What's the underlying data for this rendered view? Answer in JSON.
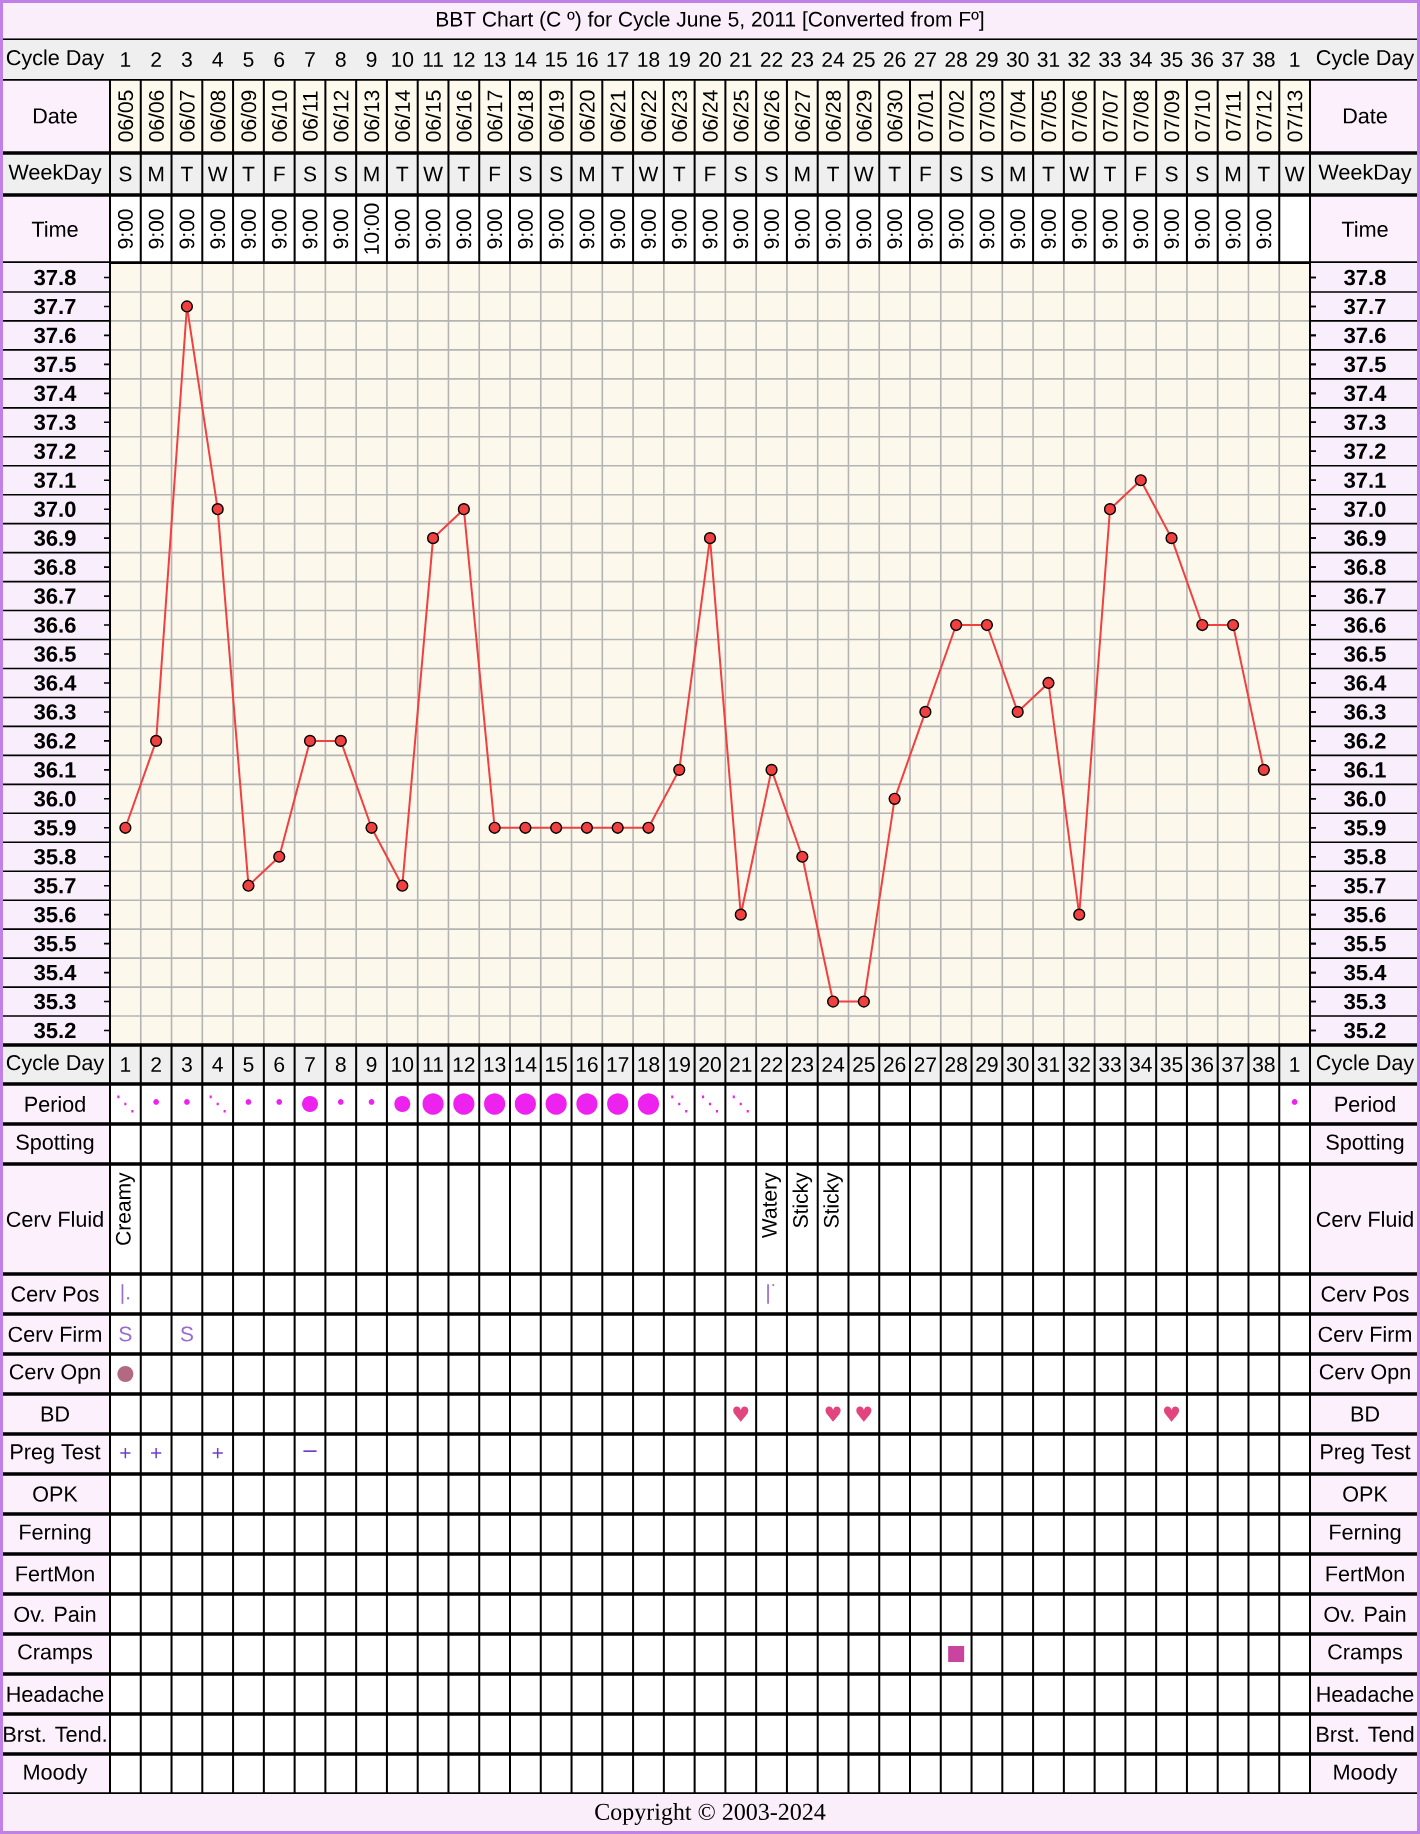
{
  "chart_data": [
    {
      "type": "other",
      "title": "BBT Chart (C º) for Cycle June 5, 2011  [Converted from Fº]",
      "y_categories": [
        "Date",
        "WeekDay",
        "Time"
      ],
      "y2_categories": [
        "Date",
        "WeekDay",
        "Time"
      ],
      "cell_labels": [
        [
          "06/05",
          "06/06",
          "06/07",
          "06/08",
          "06/09",
          "06/10",
          "06/11",
          "06/12",
          "06/13",
          "06/14",
          "06/15",
          "06/16",
          "06/17",
          "06/18",
          "06/19",
          "06/20",
          "06/21",
          "06/22",
          "06/23",
          "06/24",
          "06/25",
          "06/26",
          "06/27",
          "06/28",
          "06/29",
          "06/30",
          "07/01",
          "07/02",
          "07/03",
          "07/04",
          "07/05",
          "07/06",
          "07/07",
          "07/08",
          "07/09",
          "07/10",
          "07/11",
          "07/12",
          "07/13"
        ],
        [
          "S",
          "M",
          "T",
          "W",
          "T",
          "F",
          "S",
          "S",
          "M",
          "T",
          "W",
          "T",
          "F",
          "S",
          "S",
          "M",
          "T",
          "W",
          "T",
          "F",
          "S",
          "S",
          "M",
          "T",
          "W",
          "T",
          "F",
          "S",
          "S",
          "M",
          "T",
          "W",
          "T",
          "F",
          "S",
          "S",
          "M",
          "T",
          "W"
        ],
        [
          "9:00",
          "9:00",
          "9:00",
          "9:00",
          "9:00",
          "9:00",
          "9:00",
          "9:00",
          "10:00",
          "9:00",
          "9:00",
          "9:00",
          "9:00",
          "9:00",
          "9:00",
          "9:00",
          "9:00",
          "9:00",
          "9:00",
          "9:00",
          "9:00",
          "9:00",
          "9:00",
          "9:00",
          "9:00",
          "9:00",
          "9:00",
          "9:00",
          "9:00",
          "9:00",
          "9:00",
          "9:00",
          "9:00",
          "9:00",
          "9:00",
          "9:00",
          "9:00",
          "9:00",
          null
        ]
      ]
    },
    {
      "type": "line",
      "xlabel": "Cycle Day",
      "categories": [
        "1",
        "2",
        "3",
        "4",
        "5",
        "6",
        "7",
        "8",
        "9",
        "10",
        "11",
        "12",
        "13",
        "14",
        "15",
        "16",
        "17",
        "18",
        "19",
        "20",
        "21",
        "22",
        "23",
        "24",
        "25",
        "26",
        "27",
        "28",
        "29",
        "30",
        "31",
        "32",
        "33",
        "34",
        "35",
        "36",
        "37",
        "38",
        "1"
      ],
      "values": [
        35.9,
        36.2,
        37.7,
        37.0,
        35.7,
        35.8,
        36.2,
        36.2,
        35.9,
        35.7,
        36.9,
        37.0,
        35.9,
        35.9,
        35.9,
        35.9,
        35.9,
        35.9,
        36.1,
        36.9,
        35.6,
        36.1,
        35.8,
        35.3,
        35.3,
        36.0,
        36.3,
        36.6,
        36.6,
        36.3,
        36.4,
        35.6,
        37.0,
        37.1,
        36.9,
        36.6,
        36.6,
        36.1,
        null
      ],
      "color": "#f04040",
      "marker": "circle",
      "grid": true,
      "ylim": [
        35.15,
        37.85
      ],
      "yticks": [
        35.2,
        35.3,
        35.4,
        35.5,
        35.6,
        35.7,
        35.8,
        35.9,
        {
          "value": 36,
          "label": "36.0"
        },
        36.1,
        36.2,
        36.3,
        36.4,
        36.5,
        36.6,
        36.7,
        36.8,
        36.9,
        {
          "value": 37,
          "label": "37.0"
        },
        37.1,
        37.2,
        37.3,
        37.4,
        37.5,
        37.6,
        37.7,
        37.8
      ],
      "y2lim": [
        35.15,
        37.85
      ],
      "y2ticks": [
        35.2,
        35.3,
        35.4,
        35.5,
        35.6,
        35.7,
        35.8,
        35.9,
        {
          "value": 36,
          "label": "36.0"
        },
        36.1,
        36.2,
        36.3,
        36.4,
        36.5,
        36.6,
        36.7,
        36.8,
        36.9,
        {
          "value": 37,
          "label": "37.0"
        },
        37.1,
        37.2,
        37.3,
        37.4,
        37.5,
        37.6,
        37.7,
        37.8
      ]
    },
    {
      "type": "other",
      "y_categories": [
        "Period",
        "Spotting",
        "Cerv Fluid",
        "Cerv Pos",
        "Cerv Firm",
        "Cerv Opn",
        "BD",
        "Preg Test",
        "OPK",
        "Ferning",
        "FertMon",
        "Ov. Pain",
        "Cramps",
        "Headache",
        "Brst. Tend.",
        "Moody"
      ],
      "y2_categories": [
        "Period",
        "Spotting",
        "Cerv Fluid",
        "Cerv Pos",
        "Cerv Firm",
        "Cerv Opn",
        "BD",
        "Preg Test",
        "OPK",
        "Ferning",
        "FertMon",
        "Ov. Pain",
        "Cramps",
        "Headache",
        "Brst. Tend",
        "Moody"
      ],
      "colors": [
        "#ee22ee",
        null,
        null,
        "#9a6ccc",
        "#9a6ccc",
        "#b36a80",
        "#e2457d",
        "#6f3fc9",
        null,
        null,
        null,
        null,
        "#c8449e",
        null,
        null,
        null
      ],
      "cell_labels": [
        [
          "⋱",
          "•",
          "•",
          "⋱",
          "•",
          "•",
          "●",
          "•",
          "•",
          "●",
          "⬤",
          "⬤",
          "⬤",
          "⬤",
          "⬤",
          "⬤",
          "⬤",
          "⬤",
          "⋱",
          "⋱",
          "⋱",
          null,
          null,
          null,
          null,
          null,
          null,
          null,
          null,
          null,
          null,
          null,
          null,
          null,
          null,
          null,
          null,
          null,
          "•"
        ],
        [
          null,
          null,
          null,
          null,
          null,
          null,
          null,
          null,
          null,
          null,
          null,
          null,
          null,
          null,
          null,
          null,
          null,
          null,
          null,
          null,
          null,
          null,
          null,
          null,
          null,
          null,
          null,
          null,
          null,
          null,
          null,
          null,
          null,
          null,
          null,
          null,
          null,
          null,
          null
        ],
        [
          "Creamy",
          null,
          null,
          null,
          null,
          null,
          null,
          null,
          null,
          null,
          null,
          null,
          null,
          null,
          null,
          null,
          null,
          null,
          null,
          null,
          null,
          "Watery",
          "Sticky",
          "Sticky",
          null,
          null,
          null,
          null,
          null,
          null,
          null,
          null,
          null,
          null,
          null,
          null,
          null,
          null,
          null
        ],
        [
          "|.",
          null,
          null,
          null,
          null,
          null,
          null,
          null,
          null,
          null,
          null,
          null,
          null,
          null,
          null,
          null,
          null,
          null,
          null,
          null,
          null,
          "|˙",
          null,
          null,
          null,
          null,
          null,
          null,
          null,
          null,
          null,
          null,
          null,
          null,
          null,
          null,
          null,
          null,
          null
        ],
        [
          "S",
          null,
          "S",
          null,
          null,
          null,
          null,
          null,
          null,
          null,
          null,
          null,
          null,
          null,
          null,
          null,
          null,
          null,
          null,
          null,
          null,
          null,
          null,
          null,
          null,
          null,
          null,
          null,
          null,
          null,
          null,
          null,
          null,
          null,
          null,
          null,
          null,
          null,
          null
        ],
        [
          "●",
          null,
          null,
          null,
          null,
          null,
          null,
          null,
          null,
          null,
          null,
          null,
          null,
          null,
          null,
          null,
          null,
          null,
          null,
          null,
          null,
          null,
          null,
          null,
          null,
          null,
          null,
          null,
          null,
          null,
          null,
          null,
          null,
          null,
          null,
          null,
          null,
          null,
          null
        ],
        [
          null,
          null,
          null,
          null,
          null,
          null,
          null,
          null,
          null,
          null,
          null,
          null,
          null,
          null,
          null,
          null,
          null,
          null,
          null,
          null,
          "♥",
          null,
          null,
          "♥",
          "♥",
          null,
          null,
          null,
          null,
          null,
          null,
          null,
          null,
          null,
          "♥",
          null,
          null,
          null,
          null
        ],
        [
          "+",
          "+",
          null,
          "+",
          null,
          null,
          "−",
          null,
          null,
          null,
          null,
          null,
          null,
          null,
          null,
          null,
          null,
          null,
          null,
          null,
          null,
          null,
          null,
          null,
          null,
          null,
          null,
          null,
          null,
          null,
          null,
          null,
          null,
          null,
          null,
          null,
          null,
          null,
          null
        ],
        [
          null,
          null,
          null,
          null,
          null,
          null,
          null,
          null,
          null,
          null,
          null,
          null,
          null,
          null,
          null,
          null,
          null,
          null,
          null,
          null,
          null,
          null,
          null,
          null,
          null,
          null,
          null,
          null,
          null,
          null,
          null,
          null,
          null,
          null,
          null,
          null,
          null,
          null,
          null
        ],
        [
          null,
          null,
          null,
          null,
          null,
          null,
          null,
          null,
          null,
          null,
          null,
          null,
          null,
          null,
          null,
          null,
          null,
          null,
          null,
          null,
          null,
          null,
          null,
          null,
          null,
          null,
          null,
          null,
          null,
          null,
          null,
          null,
          null,
          null,
          null,
          null,
          null,
          null,
          null
        ],
        [
          null,
          null,
          null,
          null,
          null,
          null,
          null,
          null,
          null,
          null,
          null,
          null,
          null,
          null,
          null,
          null,
          null,
          null,
          null,
          null,
          null,
          null,
          null,
          null,
          null,
          null,
          null,
          null,
          null,
          null,
          null,
          null,
          null,
          null,
          null,
          null,
          null,
          null,
          null
        ],
        [
          null,
          null,
          null,
          null,
          null,
          null,
          null,
          null,
          null,
          null,
          null,
          null,
          null,
          null,
          null,
          null,
          null,
          null,
          null,
          null,
          null,
          null,
          null,
          null,
          null,
          null,
          null,
          null,
          null,
          null,
          null,
          null,
          null,
          null,
          null,
          null,
          null,
          null,
          null
        ],
        [
          null,
          null,
          null,
          null,
          null,
          null,
          null,
          null,
          null,
          null,
          null,
          null,
          null,
          null,
          null,
          null,
          null,
          null,
          null,
          null,
          null,
          null,
          null,
          null,
          null,
          null,
          null,
          "■",
          null,
          null,
          null,
          null,
          null,
          null,
          null,
          null,
          null,
          null,
          null
        ],
        [
          null,
          null,
          null,
          null,
          null,
          null,
          null,
          null,
          null,
          null,
          null,
          null,
          null,
          null,
          null,
          null,
          null,
          null,
          null,
          null,
          null,
          null,
          null,
          null,
          null,
          null,
          null,
          null,
          null,
          null,
          null,
          null,
          null,
          null,
          null,
          null,
          null,
          null,
          null
        ],
        [
          null,
          null,
          null,
          null,
          null,
          null,
          null,
          null,
          null,
          null,
          null,
          null,
          null,
          null,
          null,
          null,
          null,
          null,
          null,
          null,
          null,
          null,
          null,
          null,
          null,
          null,
          null,
          null,
          null,
          null,
          null,
          null,
          null,
          null,
          null,
          null,
          null,
          null,
          null
        ],
        [
          null,
          null,
          null,
          null,
          null,
          null,
          null,
          null,
          null,
          null,
          null,
          null,
          null,
          null,
          null,
          null,
          null,
          null,
          null,
          null,
          null,
          null,
          null,
          null,
          null,
          null,
          null,
          null,
          null,
          null,
          null,
          null,
          null,
          null,
          null,
          null,
          null,
          null,
          null
        ]
      ],
      "annotations": [
        "Copyright © 2003-2024"
      ]
    }
  ]
}
